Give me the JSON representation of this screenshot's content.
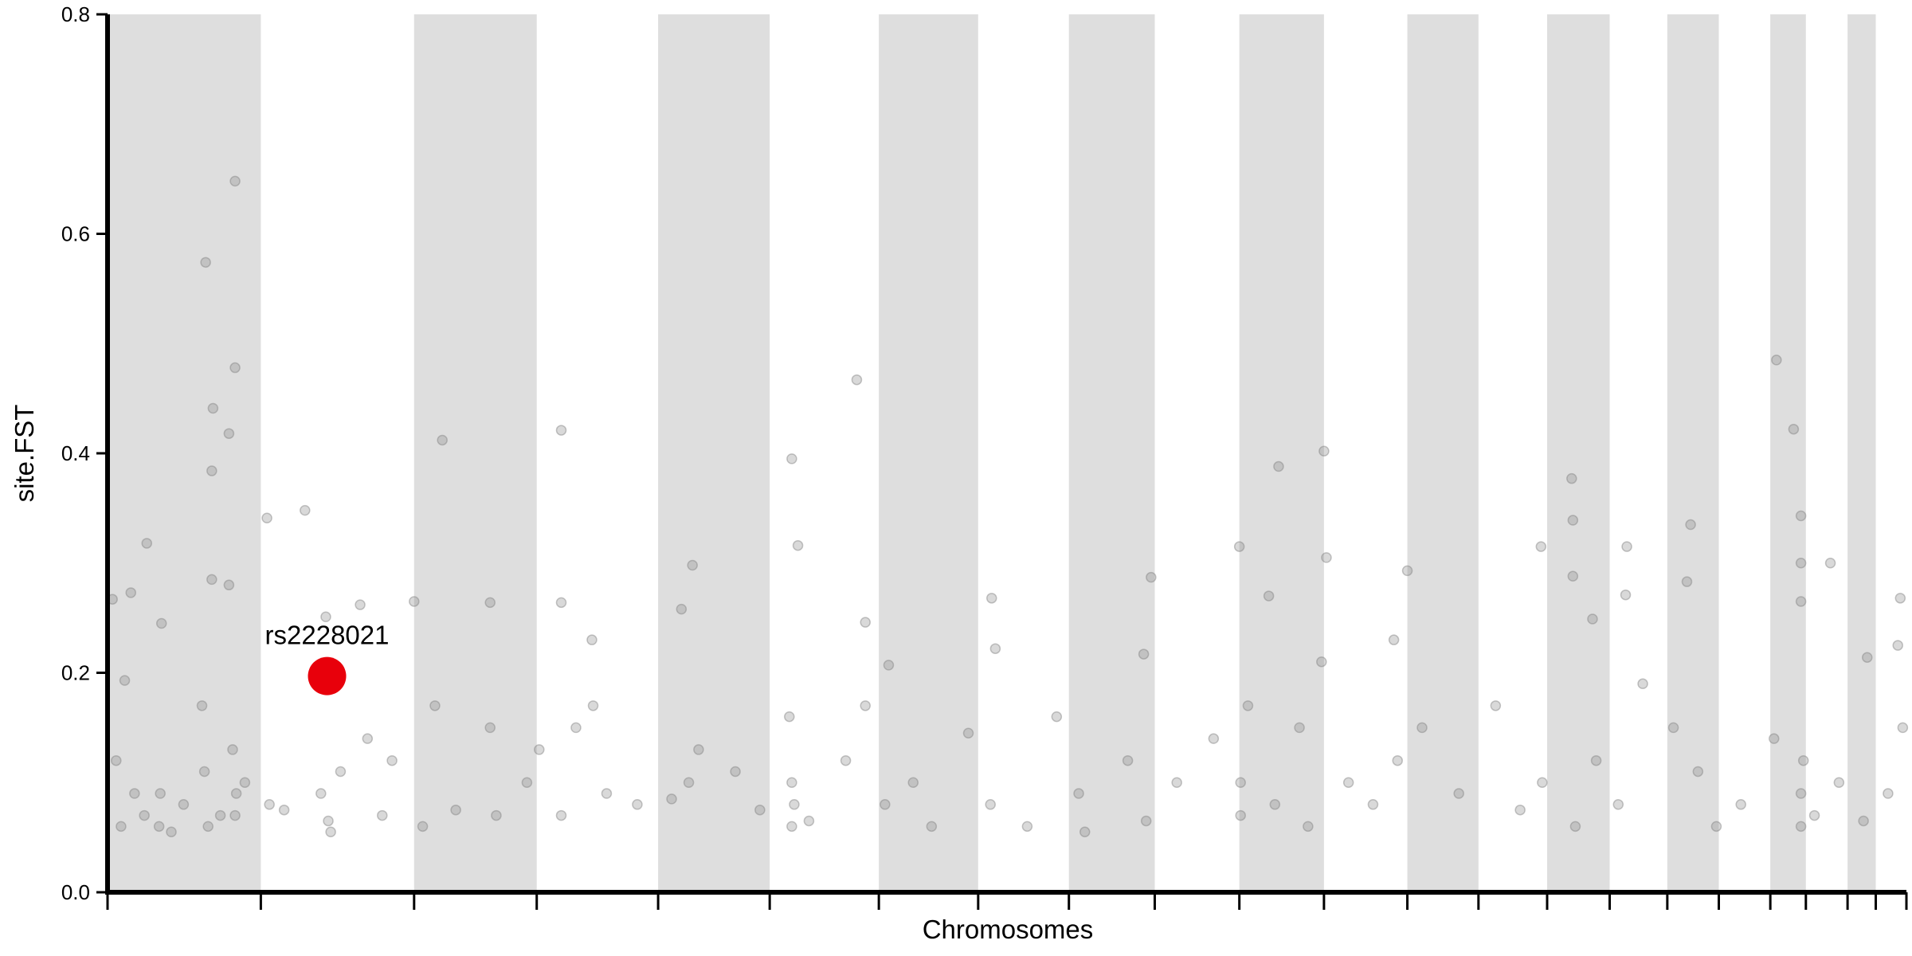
{
  "chart_data": {
    "type": "scatter",
    "x_label": "Chromosomes",
    "y_label": "site.FST",
    "color": "#808080",
    "band_color": "#dedede",
    "xlim": [
      88,
      1555
    ],
    "ylim": [
      0,
      0.8
    ],
    "yticks": [
      {
        "value": 0,
        "label": "0.0"
      },
      0.2,
      0.4,
      0.6,
      0.8
    ],
    "chromosome_boundaries": [
      88,
      213,
      338,
      438,
      537,
      628,
      717,
      798,
      872,
      942,
      1011,
      1080,
      1148,
      1206,
      1262,
      1313,
      1360,
      1402,
      1444,
      1473,
      1507,
      1530,
      1555
    ],
    "x": [
      168,
      192,
      192,
      174,
      187,
      173,
      173,
      187,
      120,
      132,
      102,
      107,
      92,
      218,
      249,
      266,
      294,
      338,
      361,
      400,
      458,
      458,
      483,
      565,
      556,
      646,
      651,
      699,
      706,
      725,
      809,
      812,
      939,
      933,
      1011,
      1035,
      1043,
      1080,
      1082,
      1148,
      1137,
      1257,
      1282,
      1283,
      1283,
      1299,
      1327,
      1326,
      1379,
      1376,
      1449,
      1463,
      1469,
      1469,
      1469,
      1493,
      1523,
      1550,
      1548,
      95,
      99,
      110,
      118,
      130,
      131,
      140,
      150,
      165,
      167,
      170,
      180,
      190,
      192,
      193,
      200,
      220,
      232,
      262,
      268,
      270,
      278,
      300,
      312,
      320,
      345,
      355,
      372,
      400,
      405,
      430,
      440,
      458,
      470,
      484,
      495,
      520,
      548,
      562,
      570,
      600,
      620,
      644,
      646,
      646,
      648,
      660,
      690,
      706,
      722,
      745,
      760,
      790,
      808,
      838,
      862,
      880,
      885,
      920,
      935,
      960,
      990,
      1012,
      1012,
      1018,
      1040,
      1060,
      1067,
      1078,
      1100,
      1120,
      1140,
      1160,
      1190,
      1220,
      1240,
      1258,
      1285,
      1302,
      1320,
      1340,
      1365,
      1385,
      1400,
      1420,
      1447,
      1469,
      1469,
      1471,
      1480,
      1500,
      1520,
      1540,
      1552
    ],
    "values": [
      0.574,
      0.648,
      0.478,
      0.441,
      0.418,
      0.384,
      0.285,
      0.28,
      0.318,
      0.245,
      0.193,
      0.273,
      0.267,
      0.341,
      0.348,
      0.251,
      0.262,
      0.265,
      0.412,
      0.264,
      0.421,
      0.264,
      0.23,
      0.298,
      0.258,
      0.395,
      0.316,
      0.467,
      0.246,
      0.207,
      0.268,
      0.222,
      0.287,
      0.217,
      0.315,
      0.27,
      0.388,
      0.402,
      0.305,
      0.293,
      0.23,
      0.315,
      0.377,
      0.339,
      0.288,
      0.249,
      0.315,
      0.271,
      0.335,
      0.283,
      0.485,
      0.422,
      0.343,
      0.3,
      0.265,
      0.3,
      0.214,
      0.268,
      0.225,
      0.12,
      0.06,
      0.09,
      0.07,
      0.06,
      0.09,
      0.055,
      0.08,
      0.17,
      0.11,
      0.06,
      0.07,
      0.13,
      0.07,
      0.09,
      0.1,
      0.08,
      0.075,
      0.09,
      0.065,
      0.055,
      0.11,
      0.14,
      0.07,
      0.12,
      0.06,
      0.17,
      0.075,
      0.15,
      0.07,
      0.1,
      0.13,
      0.07,
      0.15,
      0.17,
      0.09,
      0.08,
      0.085,
      0.1,
      0.13,
      0.11,
      0.075,
      0.16,
      0.1,
      0.06,
      0.08,
      0.065,
      0.12,
      0.17,
      0.08,
      0.1,
      0.06,
      0.145,
      0.08,
      0.06,
      0.16,
      0.09,
      0.055,
      0.12,
      0.065,
      0.1,
      0.14,
      0.07,
      0.1,
      0.17,
      0.08,
      0.15,
      0.06,
      0.21,
      0.1,
      0.08,
      0.12,
      0.15,
      0.09,
      0.17,
      0.075,
      0.1,
      0.06,
      0.12,
      0.08,
      0.19,
      0.15,
      0.11,
      0.06,
      0.08,
      0.14,
      0.09,
      0.06,
      0.12,
      0.07,
      0.1,
      0.065,
      0.09,
      0.15
    ],
    "highlight": {
      "label": "rs2228021",
      "x": 267,
      "value": 0.197,
      "color": "#e8000b"
    }
  }
}
